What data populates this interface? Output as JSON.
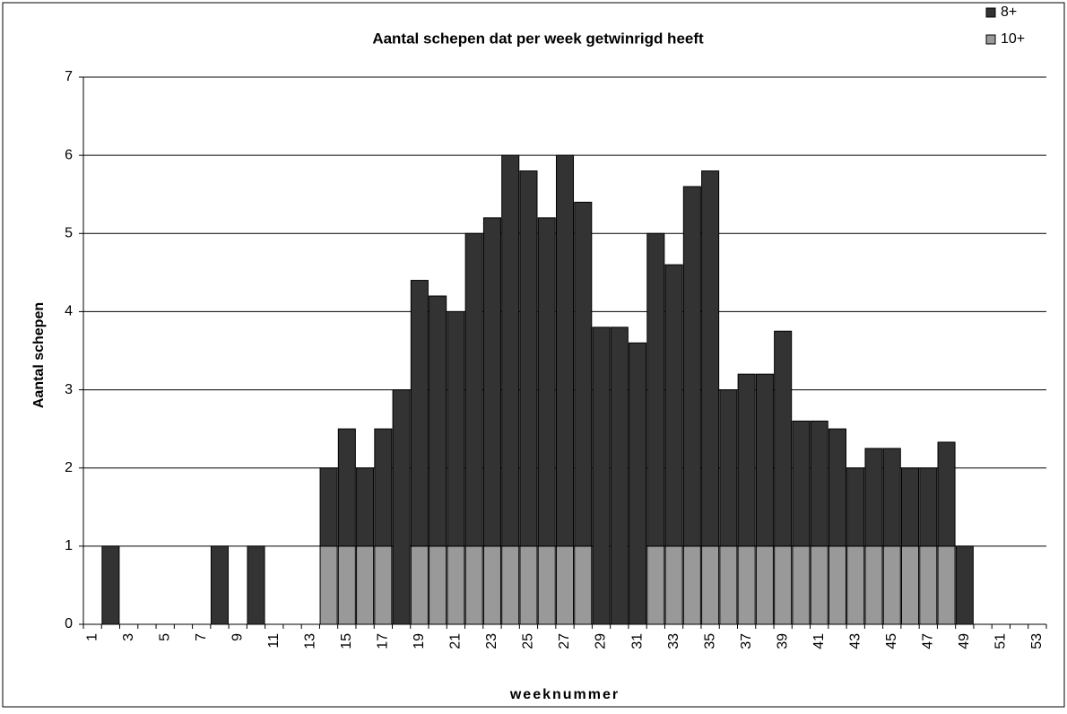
{
  "chart_data": {
    "type": "bar",
    "stacked": true,
    "title": "Aantal schepen dat per week getwinrigd heeft",
    "x_label": "weeknummer",
    "y_label": "Aantal schepen",
    "categories": [
      "1",
      null,
      "3",
      null,
      "5",
      null,
      "7",
      null,
      "9",
      null,
      "11",
      null,
      "13",
      null,
      "15",
      null,
      "17",
      null,
      "19",
      null,
      "21",
      null,
      "23",
      null,
      "25",
      null,
      "27",
      null,
      "29",
      null,
      "31",
      null,
      "33",
      null,
      "35",
      null,
      "37",
      null,
      "39",
      null,
      "41",
      null,
      "43",
      null,
      "45",
      null,
      "47",
      null,
      "49",
      null,
      "51",
      null,
      "53"
    ],
    "series": [
      {
        "name": "10+",
        "color": "#999999",
        "values": [
          0,
          0,
          0,
          0,
          0,
          0,
          0,
          0,
          0,
          0,
          0,
          0,
          0,
          1,
          1,
          1,
          1,
          0,
          1,
          1,
          1,
          1,
          1,
          1,
          1,
          1,
          1,
          1,
          0,
          0,
          0,
          1,
          1,
          1,
          1,
          1,
          1,
          1,
          1,
          1,
          1,
          1,
          1,
          1,
          1,
          1,
          1,
          1,
          0,
          0,
          0,
          0,
          0
        ]
      },
      {
        "name": "8+",
        "color": "#333333",
        "values": [
          0,
          1,
          0,
          0,
          0,
          0,
          0,
          1,
          0,
          1,
          0,
          0,
          0,
          1,
          1.5,
          1,
          1.5,
          3,
          3.4,
          3.2,
          3,
          4,
          4.2,
          5,
          4.8,
          4.2,
          5,
          4.4,
          3.8,
          3.8,
          3.6,
          4,
          3.6,
          4.6,
          4.8,
          2,
          2.2,
          2.2,
          2.75,
          1.6,
          1.6,
          1.5,
          1,
          1.25,
          1.25,
          1,
          1,
          1.33,
          1,
          0,
          0,
          0,
          0
        ]
      }
    ],
    "ylim": [
      0,
      7
    ],
    "yticks": [
      0,
      1,
      2,
      3,
      4,
      5,
      6,
      7
    ],
    "grid": true,
    "legend": "top-right"
  }
}
